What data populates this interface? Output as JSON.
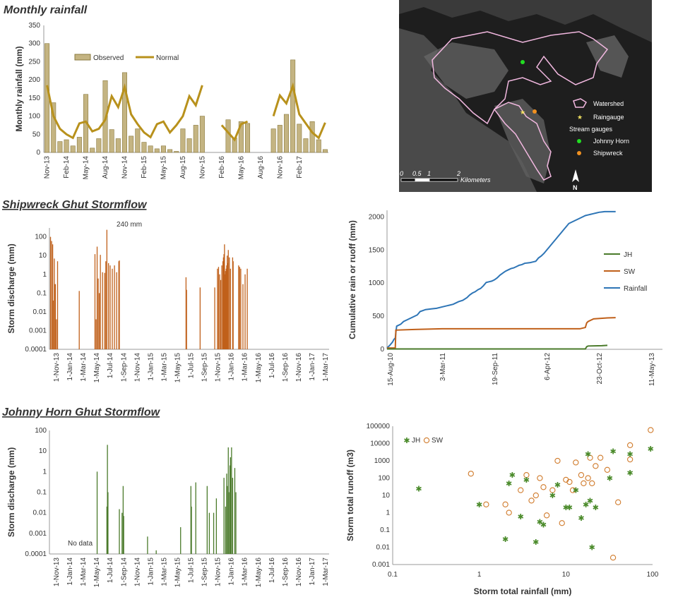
{
  "colors": {
    "observed_fill": "#c4b482",
    "observed_stroke": "#8a7a3e",
    "normal_line": "#b8911c",
    "sw": "#c0601a",
    "jh": "#4a7a2a",
    "rainfall": "#2e75b6",
    "scatter_sw": "#d07a2a",
    "scatter_jh": "#4a8a2a"
  },
  "panels": {
    "monthly_title": "Monthly rainfall",
    "shipwreck_title": "Shipwreck Ghut Stormflow",
    "johnny_title": "Johnny Horn Ghut Stormflow"
  },
  "map": {
    "legend_watershed": "Watershed",
    "legend_raingauge": "Raingauge",
    "legend_stream_gauges": "Stream gauges",
    "legend_johnny": "Johnny Horn",
    "legend_shipwreck": "Shipwreck",
    "scale_labels": [
      "0",
      "0.5",
      "1",
      "2"
    ],
    "scale_unit": "Kilometers",
    "north": "N"
  },
  "chart_data": [
    {
      "id": "monthly",
      "type": "bar",
      "title": "Monthly rainfall",
      "ylabel": "Monthly rainfall (mm)",
      "ylim": [
        0,
        350
      ],
      "yticks": [
        0,
        50,
        100,
        150,
        200,
        250,
        300,
        350
      ],
      "tick_labels": [
        "Nov-13",
        "Feb-14",
        "May-14",
        "Aug-14",
        "Nov-14",
        "Feb-15",
        "May-15",
        "Aug-15",
        "Nov-15",
        "Feb-16",
        "May-16",
        "Aug-16",
        "Nov-16",
        "Feb-17"
      ],
      "legend": [
        "Observed",
        "Normal"
      ],
      "observed": [
        300,
        137,
        30,
        35,
        18,
        42,
        160,
        12,
        38,
        198,
        63,
        38,
        220,
        45,
        65,
        28,
        18,
        10,
        18,
        8,
        3,
        65,
        38,
        75,
        100,
        null,
        null,
        0,
        90,
        40,
        85,
        80,
        null,
        null,
        null,
        65,
        75,
        105,
        255,
        78,
        38,
        85,
        35,
        8
      ],
      "normal": [
        185,
        100,
        65,
        50,
        40,
        80,
        85,
        58,
        65,
        90,
        155,
        125,
        180,
        105,
        78,
        55,
        42,
        78,
        85,
        55,
        75,
        100,
        155,
        130,
        185,
        null,
        null,
        75,
        55,
        35,
        78,
        85,
        null,
        null,
        null,
        100,
        157,
        135,
        183,
        105,
        80,
        55,
        40,
        82
      ]
    },
    {
      "id": "shipwreck",
      "type": "bar",
      "title": "Shipwreck Ghut Stormflow",
      "ylabel": "Storm discharge (mm)",
      "yscale": "log",
      "ylim": [
        0.0001,
        300
      ],
      "ytick_labels": [
        "0.0001",
        "0.001",
        "0.01",
        "0.1",
        "1",
        "10",
        "100"
      ],
      "xtick_labels": [
        "1-Nov-13",
        "1-Jan-14",
        "1-Mar-14",
        "1-May-14",
        "1-Jul-14",
        "1-Sep-14",
        "1-Nov-14",
        "1-Jan-15",
        "1-Mar-15",
        "1-May-15",
        "1-Jul-15",
        "1-Sep-15",
        "1-Nov-15",
        "1-Jan-16",
        "1-Mar-16",
        "1-May-16",
        "1-Jul-16",
        "1-Sep-16",
        "1-Nov-16",
        "1-Jan-17",
        "1-Mar-17"
      ],
      "annotation": "240 mm",
      "events": [
        [
          2,
          100
        ],
        [
          4,
          60
        ],
        [
          6,
          40
        ],
        [
          7,
          0.04
        ],
        [
          9,
          7
        ],
        [
          10,
          0.3
        ],
        [
          11,
          0.3
        ],
        [
          13,
          0.004
        ],
        [
          15,
          5
        ],
        [
          55,
          0.13
        ],
        [
          84,
          12
        ],
        [
          86,
          0.004
        ],
        [
          88,
          30
        ],
        [
          90,
          0.6
        ],
        [
          92,
          0.1
        ],
        [
          94,
          11
        ],
        [
          98,
          1.3
        ],
        [
          102,
          1.2
        ],
        [
          104,
          5
        ],
        [
          106,
          240
        ],
        [
          109,
          4
        ],
        [
          112,
          3
        ],
        [
          116,
          2
        ],
        [
          120,
          3
        ],
        [
          124,
          1.3
        ],
        [
          128,
          5
        ],
        [
          129,
          5.5
        ],
        [
          252,
          0.7
        ],
        [
          253,
          0.15
        ],
        [
          278,
          0.2
        ],
        [
          305,
          0.2
        ],
        [
          310,
          2
        ],
        [
          312,
          2.5
        ],
        [
          314,
          1
        ],
        [
          316,
          0.5
        ],
        [
          318,
          3
        ],
        [
          320,
          5
        ],
        [
          321,
          8
        ],
        [
          322,
          12
        ],
        [
          323,
          40
        ],
        [
          324,
          1
        ],
        [
          325,
          1.5
        ],
        [
          326,
          2
        ],
        [
          327,
          3
        ],
        [
          328,
          10
        ],
        [
          329,
          4
        ],
        [
          330,
          20
        ],
        [
          332,
          8
        ],
        [
          334,
          2
        ],
        [
          338,
          8
        ],
        [
          339,
          5
        ],
        [
          349,
          3
        ],
        [
          351,
          2.5
        ],
        [
          353,
          2
        ],
        [
          357,
          0.3
        ],
        [
          361,
          1
        ],
        [
          365,
          2
        ]
      ]
    },
    {
      "id": "cumulative",
      "type": "line",
      "ylabel": "Cumulative rain or ruoff (mm)",
      "ylim": [
        0,
        2100
      ],
      "yticks": [
        0,
        500,
        1000,
        1500,
        2000
      ],
      "xtick_labels": [
        "15-Aug-10",
        "3-Mar-11",
        "19-Sep-11",
        "6-Apr-12",
        "23-Oct-12",
        "11-May-13"
      ],
      "legend": [
        "JH",
        "SW",
        "Rainfall"
      ],
      "series": [
        {
          "name": "Rainfall",
          "x": [
            0,
            10,
            20,
            25,
            30,
            32,
            35,
            45,
            50,
            60,
            70,
            80,
            90,
            100,
            110,
            120,
            140,
            160,
            180,
            200,
            220,
            240,
            250,
            260,
            275,
            290,
            300,
            310,
            320,
            330,
            340,
            350,
            360,
            370,
            380,
            390,
            400,
            410,
            420,
            430,
            440,
            450,
            460,
            470,
            480,
            490,
            500,
            510,
            520,
            530,
            540,
            550,
            560,
            570,
            580,
            590,
            600,
            610,
            620,
            630,
            640,
            650,
            660,
            670,
            680,
            690,
            700,
            710,
            720,
            730,
            740,
            750,
            760,
            770,
            780,
            790,
            800,
            810,
            820,
            830
          ],
          "y": [
            20,
            60,
            110,
            150,
            170,
            250,
            350,
            370,
            380,
            420,
            440,
            460,
            480,
            500,
            520,
            570,
            600,
            610,
            620,
            640,
            660,
            680,
            700,
            720,
            740,
            780,
            820,
            850,
            870,
            900,
            920,
            960,
            1010,
            1020,
            1030,
            1050,
            1080,
            1120,
            1150,
            1180,
            1200,
            1220,
            1230,
            1250,
            1270,
            1280,
            1300,
            1305,
            1310,
            1320,
            1330,
            1380,
            1410,
            1450,
            1500,
            1550,
            1600,
            1650,
            1700,
            1750,
            1800,
            1850,
            1900,
            1920,
            1940,
            1960,
            1980,
            2000,
            2020,
            2030,
            2040,
            2050,
            2060,
            2070,
            2075,
            2080,
            2080,
            2080,
            2080,
            2080
          ]
        },
        {
          "name": "SW",
          "x": [
            0,
            30,
            32,
            100,
            200,
            300,
            400,
            500,
            600,
            700,
            720,
            725,
            730,
            750,
            800,
            830
          ],
          "y": [
            20,
            20,
            290,
            300,
            310,
            310,
            310,
            310,
            310,
            310,
            330,
            400,
            420,
            460,
            475,
            478
          ]
        },
        {
          "name": "JH",
          "x": [
            0,
            720,
            725,
            730,
            780,
            800
          ],
          "y": [
            5,
            5,
            40,
            50,
            55,
            60
          ]
        }
      ]
    },
    {
      "id": "johnny",
      "type": "bar",
      "title": "Johnny Horn Ghut Stormflow",
      "ylabel": "Storm discharge (mm)",
      "yscale": "log",
      "ylim": [
        0.0001,
        100
      ],
      "ytick_labels": [
        "0.0001",
        "0.001",
        "0.01",
        "0.1",
        "1",
        "10",
        "100"
      ],
      "xtick_labels": [
        "1-Nov-13",
        "1-Jan-14",
        "1-Mar-14",
        "1-May-14",
        "1-Jul-14",
        "1-Sep-14",
        "1-Nov-14",
        "1-Jan-15",
        "1-Mar-15",
        "1-May-15",
        "1-Jul-15",
        "1-Sep-15",
        "1-Nov-15",
        "1-Jan-16",
        "1-Mar-16",
        "1-May-16",
        "1-Jul-16",
        "1-Sep-16",
        "1-Nov-16",
        "1-Jan-17",
        "1-Mar-17"
      ],
      "annotation": "No data",
      "events": [
        [
          88,
          1
        ],
        [
          106,
          0.02
        ],
        [
          107,
          20
        ],
        [
          108,
          0.1
        ],
        [
          129,
          0.015
        ],
        [
          134,
          0.01
        ],
        [
          136,
          0.2
        ],
        [
          137,
          0.007
        ],
        [
          181,
          0.0007
        ],
        [
          197,
          0.00015
        ],
        [
          205,
          0.0001
        ],
        [
          242,
          0.002
        ],
        [
          261,
          0.2
        ],
        [
          262,
          0.02
        ],
        [
          270,
          0.3
        ],
        [
          291,
          0.2
        ],
        [
          295,
          0.01
        ],
        [
          303,
          0.01
        ],
        [
          308,
          0.05
        ],
        [
          322,
          0.5
        ],
        [
          325,
          0.02
        ],
        [
          327,
          0.8
        ],
        [
          328,
          0.2
        ],
        [
          330,
          15
        ],
        [
          331,
          0.1
        ],
        [
          333,
          2
        ],
        [
          334,
          5
        ],
        [
          336,
          15
        ],
        [
          338,
          0.5
        ],
        [
          342,
          1.5
        ],
        [
          344,
          0.1
        ]
      ]
    },
    {
      "id": "scatter",
      "type": "scatter",
      "xlabel": "Storm total rainfall (mm)",
      "ylabel": "Storm total runoff (m3)",
      "xscale": "log",
      "yscale": "log",
      "xlim": [
        0.1,
        100
      ],
      "ylim": [
        0.001,
        100000
      ],
      "xtick_labels": [
        "0.1",
        "1",
        "10",
        "100"
      ],
      "ytick_labels": [
        "0.001",
        "0.01",
        "0.1",
        "1",
        "10",
        "100",
        "1000",
        "10000",
        "100000"
      ],
      "legend": [
        "JH",
        "SW"
      ],
      "series": [
        {
          "name": "JH",
          "points": [
            [
              0.2,
              25
            ],
            [
              1,
              3
            ],
            [
              2,
              0.03
            ],
            [
              2.2,
              50
            ],
            [
              2.4,
              150
            ],
            [
              3,
              0.6
            ],
            [
              3.5,
              80
            ],
            [
              4.5,
              0.02
            ],
            [
              5,
              0.3
            ],
            [
              5.5,
              0.2
            ],
            [
              7,
              10
            ],
            [
              8,
              40
            ],
            [
              10,
              2
            ],
            [
              11,
              2
            ],
            [
              13,
              20
            ],
            [
              15,
              0.5
            ],
            [
              17,
              3
            ],
            [
              18,
              2500
            ],
            [
              19,
              5
            ],
            [
              20,
              0.01
            ],
            [
              22,
              2
            ],
            [
              32,
              100
            ],
            [
              35,
              3500
            ],
            [
              55,
              200
            ],
            [
              55,
              2500
            ],
            [
              95,
              5000
            ]
          ]
        },
        {
          "name": "SW",
          "points": [
            [
              0.8,
              180
            ],
            [
              1.2,
              3
            ],
            [
              2,
              3
            ],
            [
              2.2,
              1
            ],
            [
              3,
              20
            ],
            [
              3.5,
              150
            ],
            [
              4,
              5
            ],
            [
              4.5,
              10
            ],
            [
              5,
              100
            ],
            [
              5.5,
              30
            ],
            [
              6,
              0.7
            ],
            [
              7,
              20
            ],
            [
              8,
              1000
            ],
            [
              9,
              0.25
            ],
            [
              10,
              80
            ],
            [
              11,
              60
            ],
            [
              12,
              20
            ],
            [
              13,
              800
            ],
            [
              15,
              150
            ],
            [
              16,
              50
            ],
            [
              18,
              100
            ],
            [
              19,
              1500
            ],
            [
              20,
              50
            ],
            [
              22,
              500
            ],
            [
              25,
              1500
            ],
            [
              30,
              300
            ],
            [
              35,
              0.0025
            ],
            [
              40,
              4
            ],
            [
              55,
              8000
            ],
            [
              55,
              1200
            ],
            [
              95,
              60000
            ]
          ]
        }
      ]
    }
  ]
}
